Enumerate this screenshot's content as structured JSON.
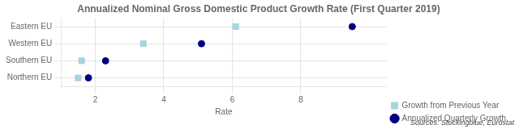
{
  "chart_data": {
    "type": "dot",
    "title": "Annualized Nominal Gross Domestic Product Growth Rate (First Quarter 2019)",
    "xlabel": "Rate",
    "annotations": [
      "Sources: Stockingblue, Eurostat"
    ],
    "categories": [
      "Eastern EU",
      "Western EU",
      "Southern EU",
      "Northern EU"
    ],
    "series": [
      {
        "name": "Annualized Quarterly Growth",
        "color": "#000080",
        "marker": "circle",
        "values": [
          9.5,
          5.1,
          2.3,
          1.8
        ]
      },
      {
        "name": "Growth from Previous Year",
        "color": "#a8d4dc",
        "marker": "square",
        "values": [
          6.1,
          3.4,
          1.6,
          1.5
        ]
      }
    ],
    "orientation": "horizontal",
    "xlim": [
      1,
      10.5
    ],
    "xticks": [
      2,
      4,
      6,
      8
    ],
    "grid": true,
    "legend": "lower right"
  }
}
